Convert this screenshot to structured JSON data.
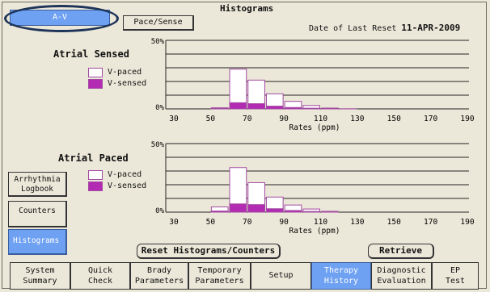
{
  "header": {
    "tab_av": "A-V",
    "tab_pace_sense": "Pace/Sense",
    "title": "Histograms",
    "reset_prefix": "Date of Last Reset",
    "reset_date": "11-APR-2009"
  },
  "legend": {
    "paced": "V-paced",
    "sensed": "V-sensed"
  },
  "colors": {
    "sensed": "#b32bb3",
    "paced": "#ffffff",
    "accent": "#6fa1f2"
  },
  "chart_data": [
    {
      "type": "bar",
      "stacked": true,
      "title": "Atrial Sensed",
      "ymax_label": "50%",
      "ymin_label": "0%",
      "ylim": [
        0,
        50
      ],
      "xlabel": "Rates (ppm)",
      "x_ticks": [
        "30",
        "50",
        "70",
        "90",
        "110",
        "130",
        "150",
        "170",
        "190"
      ],
      "bins": [
        {
          "start": 50,
          "end": 60,
          "sensed": 0.3,
          "paced": 0.5
        },
        {
          "start": 60,
          "end": 70,
          "sensed": 4.5,
          "paced": 24.5
        },
        {
          "start": 70,
          "end": 80,
          "sensed": 3.8,
          "paced": 17.2
        },
        {
          "start": 80,
          "end": 90,
          "sensed": 2.0,
          "paced": 9.0
        },
        {
          "start": 90,
          "end": 100,
          "sensed": 1.0,
          "paced": 4.5
        },
        {
          "start": 100,
          "end": 110,
          "sensed": 0.5,
          "paced": 2.0
        },
        {
          "start": 110,
          "end": 120,
          "sensed": 0.1,
          "paced": 0.5
        },
        {
          "start": 120,
          "end": 130,
          "sensed": 0.0,
          "paced": 0.1
        }
      ],
      "grid": true
    },
    {
      "type": "bar",
      "stacked": true,
      "title": "Atrial Paced",
      "ymax_label": "50%",
      "ymin_label": "0%",
      "ylim": [
        0,
        50
      ],
      "xlabel": "Rates (ppm)",
      "x_ticks": [
        "30",
        "50",
        "70",
        "90",
        "110",
        "130",
        "150",
        "170",
        "190"
      ],
      "bins": [
        {
          "start": 50,
          "end": 60,
          "sensed": 0.8,
          "paced": 3.0
        },
        {
          "start": 60,
          "end": 70,
          "sensed": 6.0,
          "paced": 26.5
        },
        {
          "start": 70,
          "end": 80,
          "sensed": 5.5,
          "paced": 16.0
        },
        {
          "start": 80,
          "end": 90,
          "sensed": 2.5,
          "paced": 8.5
        },
        {
          "start": 90,
          "end": 100,
          "sensed": 1.2,
          "paced": 4.0
        },
        {
          "start": 100,
          "end": 110,
          "sensed": 0.5,
          "paced": 1.8
        },
        {
          "start": 110,
          "end": 120,
          "sensed": 0.1,
          "paced": 0.5
        }
      ],
      "grid": true
    }
  ],
  "sidebar": {
    "arrhythmia_logbook": "Arrhythmia Logbook",
    "counters": "Counters",
    "histograms": "Histograms"
  },
  "actions": {
    "reset": "Reset Histograms/Counters",
    "retrieve": "Retrieve"
  },
  "bottom_tabs": [
    {
      "line1": "System",
      "line2": "Summary"
    },
    {
      "line1": "Quick",
      "line2": "Check"
    },
    {
      "line1": "Brady",
      "line2": "Parameters"
    },
    {
      "line1": "Temporary",
      "line2": "Parameters"
    },
    {
      "line1": "Setup",
      "line2": ""
    },
    {
      "line1": "Therapy",
      "line2": "History"
    },
    {
      "line1": "Diagnostic",
      "line2": "Evaluation"
    },
    {
      "line1": "EP",
      "line2": "Test"
    }
  ]
}
